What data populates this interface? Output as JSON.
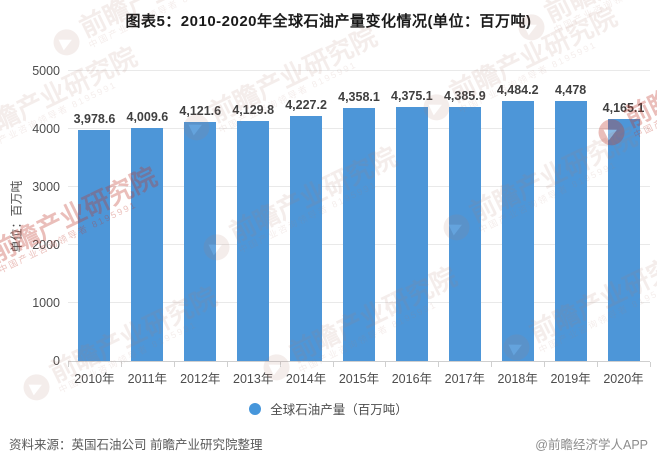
{
  "title": "图表5：2010-2020年全球石油产量变化情况(单位：百万吨)",
  "chart_data": {
    "type": "bar",
    "categories": [
      "2010年",
      "2011年",
      "2012年",
      "2013年",
      "2014年",
      "2015年",
      "2016年",
      "2017年",
      "2018年",
      "2019年",
      "2020年"
    ],
    "values": [
      3978.6,
      4009.6,
      4121.6,
      4129.8,
      4227.2,
      4358.1,
      4375.1,
      4385.9,
      4484.2,
      4478,
      4165.1
    ],
    "value_labels": [
      "3,978.6",
      "4,009.6",
      "4,121.6",
      "4,129.8",
      "4,227.2",
      "4,358.1",
      "4,375.1",
      "4,385.9",
      "4,484.2",
      "4,478",
      "4,165.1"
    ],
    "title": "图表5：2010-2020年全球石油产量变化情况(单位：百万吨)",
    "xlabel": "",
    "ylabel": "单位：百万吨",
    "yticks": [
      0,
      1000,
      2000,
      3000,
      4000,
      5000
    ],
    "ylim": [
      0,
      5000
    ],
    "grid": true,
    "legend": [
      "全球石油产量（百万吨）"
    ],
    "legend_position": "bottom",
    "bar_color": "#4d96d8"
  },
  "y_axis_title": "单位：百万吨",
  "legend": {
    "label": "全球石油产量（百万吨）"
  },
  "footer": {
    "source": "资料来源：英国石油公司 前瞻产业研究院整理",
    "credit": "@前瞻经济学人APP"
  },
  "watermark": {
    "brand": "前瞻产业研究院",
    "sub": "中国产业咨询领导者",
    "digits": "8195991"
  },
  "colors": {
    "bar": "#4d96d8",
    "title_text": "#1a1a1a",
    "axis_text": "#4d4d4d",
    "value_label": "#404040",
    "gridline": "#e9e9e9",
    "source_text": "#595959",
    "credit_text": "#8c8c8c",
    "watermark": "#b07a6e"
  }
}
